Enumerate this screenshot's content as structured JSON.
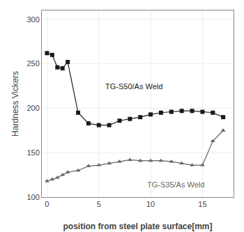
{
  "chart_data": {
    "type": "line",
    "x_label": "position from steel plate surface[mm]",
    "y_label": "Hardness Vickers",
    "x": [
      0,
      0.5,
      1,
      1.5,
      2,
      3,
      4,
      5,
      6,
      7,
      8,
      9,
      10,
      11,
      12,
      13,
      14,
      15,
      16,
      17
    ],
    "series": [
      {
        "name": "TG-S50/As Weld",
        "color": "#1a1a1a",
        "marker": "square",
        "values": [
          262,
          260,
          246,
          245,
          252,
          195,
          183,
          181,
          181,
          186,
          188,
          190,
          193,
          195,
          196,
          197,
          197,
          196,
          195,
          190
        ]
      },
      {
        "name": "TG-S35/As Weld",
        "color": "#666666",
        "marker": "triangle-up",
        "values": [
          118,
          120,
          122,
          125,
          128,
          130,
          135,
          136,
          138,
          140,
          142,
          141,
          141,
          141,
          140,
          138,
          136,
          136,
          163,
          175
        ]
      }
    ],
    "annotations": [
      {
        "text": "TG-S50/As Weld",
        "x": 5.5,
        "y": 218
      },
      {
        "text": "TG-S35/As Weld",
        "x": 9.5,
        "y": 108
      }
    ],
    "xlim": [
      -0.5,
      18
    ],
    "ylim": [
      100,
      310
    ],
    "xticks": [
      0,
      5,
      10,
      15
    ],
    "yticks": [
      100,
      150,
      200,
      250,
      300
    ],
    "grid": true
  }
}
